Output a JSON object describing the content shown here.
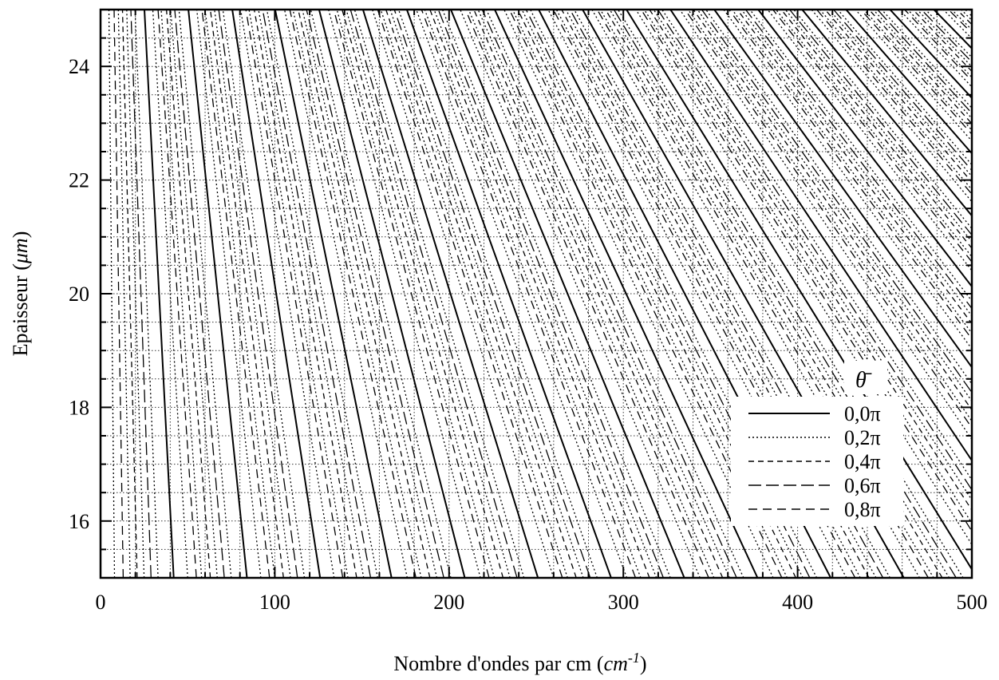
{
  "chart_data": {
    "type": "line",
    "xlabel": "Nombre d'ondes par cm (cm-1)",
    "xlabel_main": "Nombre d'ondes par cm",
    "xlabel_unit_base": "cm",
    "xlabel_unit_sup": "-1",
    "ylabel": "Epaisseur (μm)",
    "ylabel_main": "Epaisseur",
    "ylabel_unit": "μm",
    "xlim": [
      0,
      500
    ],
    "ylim": [
      15,
      25
    ],
    "x_ticks": [
      0,
      100,
      200,
      300,
      400,
      500
    ],
    "y_ticks": [
      16,
      18,
      20,
      22,
      24
    ],
    "grid": true,
    "legend_title": "θ̄",
    "legend_placement": "bottom-right",
    "line_model": "contours of phase: wavenumber x thickness = constant; x at y=25 is x15 * 15/25",
    "series": [
      {
        "name": "0,0π",
        "style": "solid",
        "x_at_y15": [
          42,
          84,
          126,
          167,
          209,
          251,
          293,
          335,
          377,
          419,
          461,
          503,
          545,
          587,
          629,
          671,
          713,
          755,
          797,
          839
        ]
      },
      {
        "name": "0,2π",
        "style": "dotted",
        "x_at_y15": [
          8,
          17,
          25,
          33,
          50,
          58,
          67,
          75,
          92,
          100,
          109,
          117,
          134,
          142,
          151,
          159,
          176,
          184,
          193,
          201,
          218,
          226,
          235,
          243,
          260,
          268,
          277,
          285,
          302,
          310,
          319,
          327,
          344,
          352,
          361,
          369,
          386,
          394,
          403,
          411,
          428,
          436,
          445,
          453,
          470,
          478,
          487,
          495,
          512,
          520,
          529,
          537,
          554,
          562,
          571,
          579,
          596,
          604,
          613,
          621,
          638,
          646,
          655,
          663,
          680,
          688,
          697,
          705,
          722,
          730,
          739,
          747,
          764,
          772,
          781,
          789,
          806,
          814,
          823,
          831
        ]
      },
      {
        "name": "0,4π",
        "style": "short-dash",
        "x_at_y15": [
          21,
          63,
          105,
          147,
          189,
          231,
          273,
          315,
          357,
          399,
          441,
          483,
          525,
          567,
          609,
          651,
          693,
          735,
          777,
          819
        ]
      },
      {
        "name": "0,6π",
        "style": "long-dash",
        "x_at_y15": [
          29,
          71,
          113,
          155,
          197,
          239,
          281,
          323,
          365,
          407,
          449,
          491,
          533,
          575,
          617,
          659,
          701,
          743,
          785,
          827
        ]
      },
      {
        "name": "0,8π",
        "style": "medium-dash",
        "x_at_y15": [
          13,
          55,
          97,
          139,
          181,
          223,
          265,
          307,
          349,
          391,
          433,
          475,
          517,
          559,
          601,
          643,
          685,
          727,
          769,
          811
        ]
      }
    ]
  }
}
